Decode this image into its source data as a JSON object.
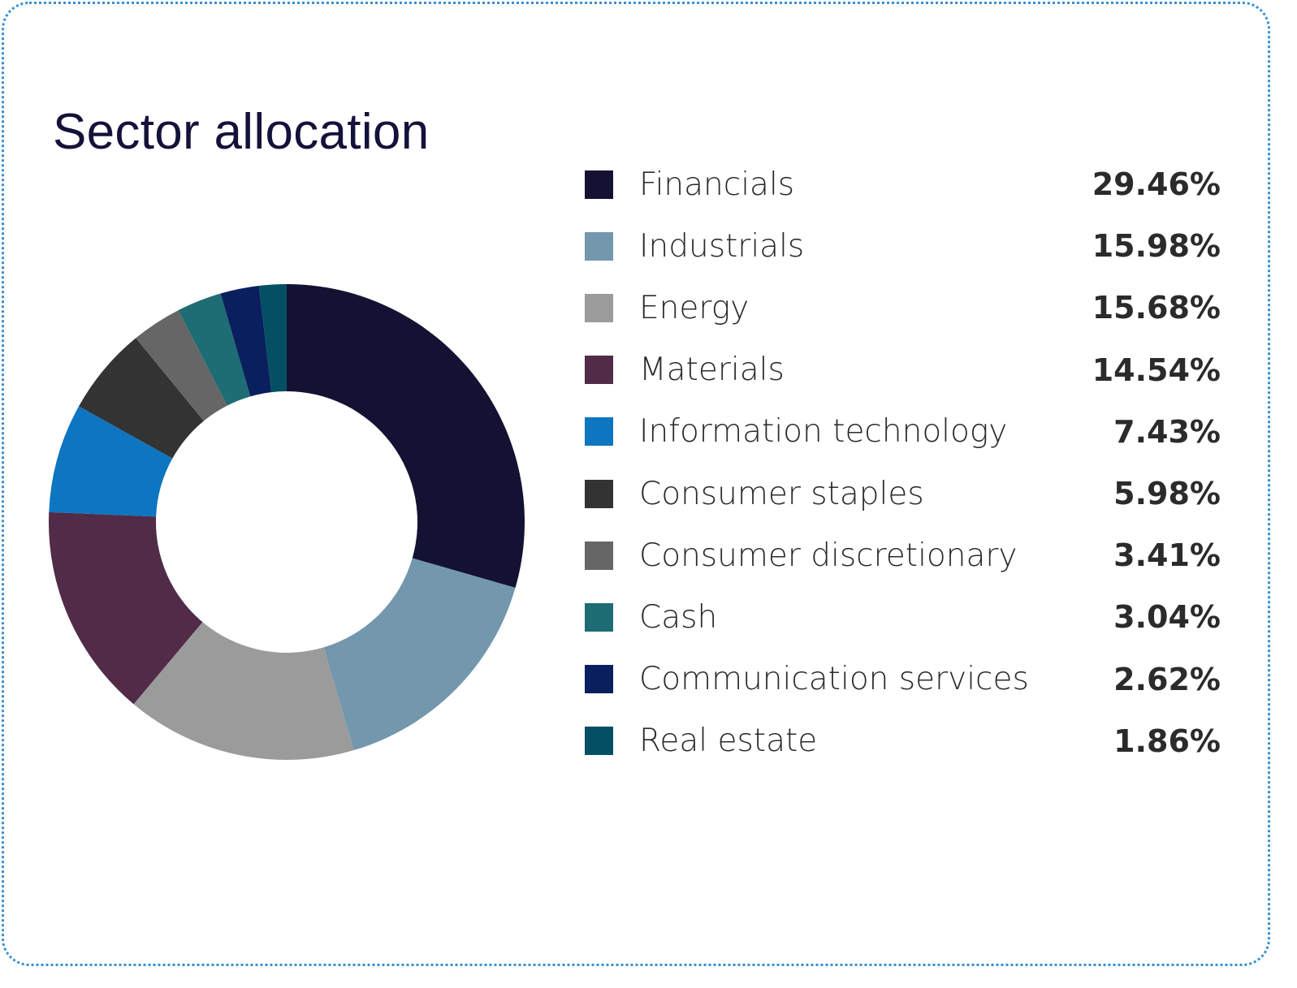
{
  "title": "Sector allocation",
  "chart_data": {
    "type": "pie",
    "donut": true,
    "title": "Sector allocation",
    "legend_position": "right",
    "slices": [
      {
        "label": "Financials",
        "value": 29.46,
        "display": "29.46%",
        "color": "#131232"
      },
      {
        "label": "Industrials",
        "value": 15.98,
        "display": "15.98%",
        "color": "#7397ad"
      },
      {
        "label": "Energy",
        "value": 15.68,
        "display": "15.68%",
        "color": "#9b9b9c"
      },
      {
        "label": "Materials",
        "value": 14.54,
        "display": "14.54%",
        "color": "#512b47"
      },
      {
        "label": "Information technology",
        "value": 7.43,
        "display": "7.43%",
        "color": "#0e75c0"
      },
      {
        "label": "Consumer staples",
        "value": 5.98,
        "display": "5.98%",
        "color": "#333333"
      },
      {
        "label": "Consumer discretionary",
        "value": 3.41,
        "display": "3.41%",
        "color": "#666666"
      },
      {
        "label": "Cash",
        "value": 3.04,
        "display": "3.04%",
        "color": "#1e6c74"
      },
      {
        "label": "Communication services",
        "value": 2.62,
        "display": "2.62%",
        "color": "#0a1f5e"
      },
      {
        "label": "Real estate",
        "value": 1.86,
        "display": "1.86%",
        "color": "#044f63"
      }
    ]
  }
}
